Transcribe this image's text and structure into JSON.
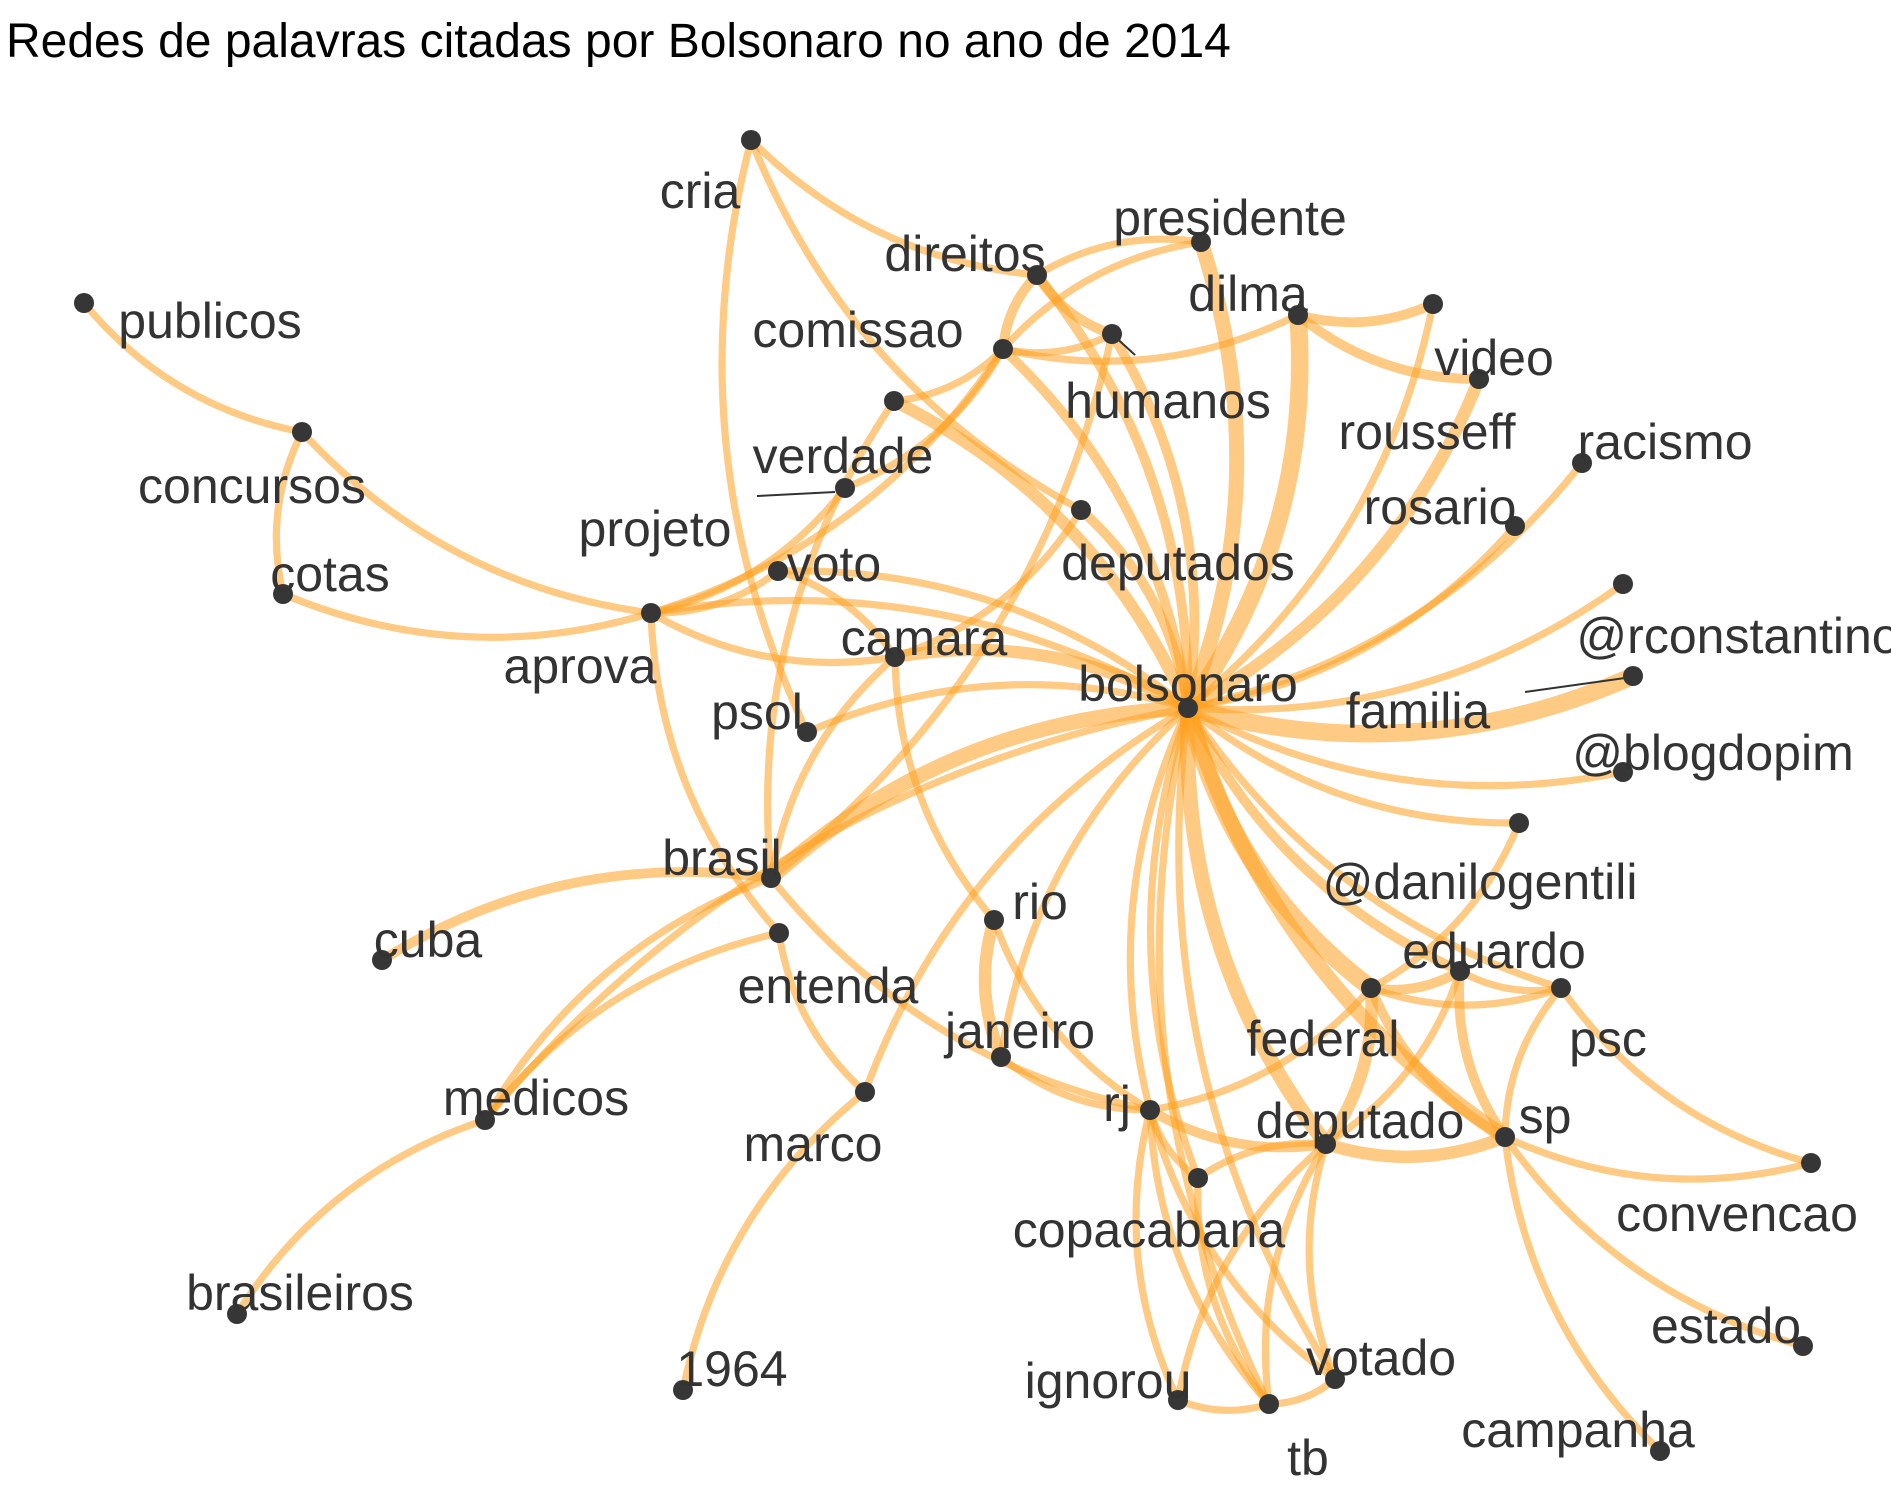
{
  "title": "Redes de palavras citadas por Bolsonaro no ano de 2014",
  "colors": {
    "edge": "#FFA11F",
    "node": "#363636",
    "label": "#333333",
    "background": "#ffffff"
  },
  "nodes": [
    {
      "id": "bolsonaro",
      "label": "bolsonaro"
    },
    {
      "id": "cria",
      "label": "cria"
    },
    {
      "id": "presidente",
      "label": "presidente"
    },
    {
      "id": "direitos",
      "label": "direitos"
    },
    {
      "id": "dilma",
      "label": "dilma"
    },
    {
      "id": "comissao",
      "label": "comissao"
    },
    {
      "id": "humanos",
      "label": "humanos"
    },
    {
      "id": "video",
      "label": "video"
    },
    {
      "id": "rousseff",
      "label": "rousseff"
    },
    {
      "id": "publicos",
      "label": "publicos"
    },
    {
      "id": "racismo",
      "label": "racismo"
    },
    {
      "id": "concursos",
      "label": "concursos"
    },
    {
      "id": "verdade",
      "label": "verdade"
    },
    {
      "id": "projeto",
      "label": "projeto"
    },
    {
      "id": "rosario",
      "label": "rosario"
    },
    {
      "id": "deputados",
      "label": "deputados"
    },
    {
      "id": "cotas",
      "label": "cotas"
    },
    {
      "id": "voto",
      "label": "voto"
    },
    {
      "id": "aprova",
      "label": "aprova"
    },
    {
      "id": "camara",
      "label": "camara"
    },
    {
      "id": "rconstantino",
      "label": "@rconstantino"
    },
    {
      "id": "familia",
      "label": "familia"
    },
    {
      "id": "psol",
      "label": "psol"
    },
    {
      "id": "blogdopim",
      "label": "@blogdopim"
    },
    {
      "id": "brasil",
      "label": "brasil"
    },
    {
      "id": "danilogentili",
      "label": "@danilogentili"
    },
    {
      "id": "rio",
      "label": "rio"
    },
    {
      "id": "cuba",
      "label": "cuba"
    },
    {
      "id": "entenda",
      "label": "entenda"
    },
    {
      "id": "eduardo",
      "label": "eduardo"
    },
    {
      "id": "janeiro",
      "label": "janeiro"
    },
    {
      "id": "federal",
      "label": "federal"
    },
    {
      "id": "psc",
      "label": "psc"
    },
    {
      "id": "medicos",
      "label": "medicos"
    },
    {
      "id": "rj",
      "label": "rj"
    },
    {
      "id": "deputado",
      "label": "deputado"
    },
    {
      "id": "sp",
      "label": "sp"
    },
    {
      "id": "marco",
      "label": "marco"
    },
    {
      "id": "convencao",
      "label": "convencao"
    },
    {
      "id": "copacabana",
      "label": "copacabana"
    },
    {
      "id": "brasileiros",
      "label": "brasileiros"
    },
    {
      "id": "estado",
      "label": "estado"
    },
    {
      "id": "1964",
      "label": "1964"
    },
    {
      "id": "votado",
      "label": "votado"
    },
    {
      "id": "ignorou",
      "label": "ignorou"
    },
    {
      "id": "tb",
      "label": "tb"
    },
    {
      "id": "campanha",
      "label": "campanha"
    }
  ],
  "edges": [
    {
      "source": "bolsonaro",
      "target": "dilma",
      "weight": 6
    },
    {
      "source": "bolsonaro",
      "target": "presidente",
      "weight": 5
    },
    {
      "source": "bolsonaro",
      "target": "rousseff",
      "weight": 4
    },
    {
      "source": "bolsonaro",
      "target": "familia",
      "weight": 6
    },
    {
      "source": "bolsonaro",
      "target": "federal",
      "weight": 6
    },
    {
      "source": "bolsonaro",
      "target": "deputado",
      "weight": 5
    },
    {
      "source": "bolsonaro",
      "target": "sp",
      "weight": 5
    },
    {
      "source": "bolsonaro",
      "target": "brasil",
      "weight": 5
    },
    {
      "source": "bolsonaro",
      "target": "camara",
      "weight": 4
    },
    {
      "source": "bolsonaro",
      "target": "verdade",
      "weight": 4
    },
    {
      "source": "bolsonaro",
      "target": "direitos",
      "weight": 3
    },
    {
      "source": "bolsonaro",
      "target": "comissao",
      "weight": 3
    },
    {
      "source": "bolsonaro",
      "target": "humanos",
      "weight": 3
    },
    {
      "source": "bolsonaro",
      "target": "deputados",
      "weight": 3
    },
    {
      "source": "bolsonaro",
      "target": "aprova",
      "weight": 2
    },
    {
      "source": "bolsonaro",
      "target": "voto",
      "weight": 2
    },
    {
      "source": "bolsonaro",
      "target": "rosario",
      "weight": 2
    },
    {
      "source": "bolsonaro",
      "target": "racismo",
      "weight": 2
    },
    {
      "source": "bolsonaro",
      "target": "rconstantino",
      "weight": 2
    },
    {
      "source": "bolsonaro",
      "target": "blogdopim",
      "weight": 2
    },
    {
      "source": "bolsonaro",
      "target": "danilogentili",
      "weight": 2
    },
    {
      "source": "bolsonaro",
      "target": "eduardo",
      "weight": 3
    },
    {
      "source": "bolsonaro",
      "target": "psc",
      "weight": 2
    },
    {
      "source": "bolsonaro",
      "target": "psol",
      "weight": 2
    },
    {
      "source": "bolsonaro",
      "target": "medicos",
      "weight": 2
    },
    {
      "source": "bolsonaro",
      "target": "marco",
      "weight": 2
    },
    {
      "source": "bolsonaro",
      "target": "janeiro",
      "weight": 2
    },
    {
      "source": "bolsonaro",
      "target": "rj",
      "weight": 2
    },
    {
      "source": "bolsonaro",
      "target": "copacabana",
      "weight": 2
    },
    {
      "source": "bolsonaro",
      "target": "tb",
      "weight": 2
    },
    {
      "source": "bolsonaro",
      "target": "votado",
      "weight": 2
    },
    {
      "source": "bolsonaro",
      "target": "video",
      "weight": 2
    },
    {
      "source": "dilma",
      "target": "video",
      "weight": 3
    },
    {
      "source": "dilma",
      "target": "rousseff",
      "weight": 3
    },
    {
      "source": "presidente",
      "target": "direitos",
      "weight": 2
    },
    {
      "source": "presidente",
      "target": "comissao",
      "weight": 2
    },
    {
      "source": "direitos",
      "target": "humanos",
      "weight": 3
    },
    {
      "source": "direitos",
      "target": "comissao",
      "weight": 3
    },
    {
      "source": "comissao",
      "target": "humanos",
      "weight": 2
    },
    {
      "source": "comissao",
      "target": "dilma",
      "weight": 2
    },
    {
      "source": "cria",
      "target": "direitos",
      "weight": 2
    },
    {
      "source": "cria",
      "target": "psol",
      "weight": 2
    },
    {
      "source": "cria",
      "target": "deputados",
      "weight": 2
    },
    {
      "source": "publicos",
      "target": "concursos",
      "weight": 2
    },
    {
      "source": "concursos",
      "target": "cotas",
      "weight": 2
    },
    {
      "source": "concursos",
      "target": "aprova",
      "weight": 2
    },
    {
      "source": "cotas",
      "target": "aprova",
      "weight": 2
    },
    {
      "source": "aprova",
      "target": "projeto",
      "weight": 2
    },
    {
      "source": "aprova",
      "target": "comissao",
      "weight": 2
    },
    {
      "source": "aprova",
      "target": "camara",
      "weight": 2
    },
    {
      "source": "aprova",
      "target": "entenda",
      "weight": 2
    },
    {
      "source": "aprova",
      "target": "voto",
      "weight": 2
    },
    {
      "source": "verdade",
      "target": "comissao",
      "weight": 2
    },
    {
      "source": "verdade",
      "target": "brasil",
      "weight": 2
    },
    {
      "source": "projeto",
      "target": "comissao",
      "weight": 2
    },
    {
      "source": "camara",
      "target": "voto",
      "weight": 2
    },
    {
      "source": "camara",
      "target": "deputados",
      "weight": 2
    },
    {
      "source": "camara",
      "target": "brasil",
      "weight": 2
    },
    {
      "source": "camara",
      "target": "rio",
      "weight": 2
    },
    {
      "source": "brasil",
      "target": "cuba",
      "weight": 3
    },
    {
      "source": "brasil",
      "target": "medicos",
      "weight": 2
    },
    {
      "source": "brasil",
      "target": "rj",
      "weight": 2
    },
    {
      "source": "brasil",
      "target": "humanos",
      "weight": 2
    },
    {
      "source": "entenda",
      "target": "medicos",
      "weight": 2
    },
    {
      "source": "entenda",
      "target": "marco",
      "weight": 2
    },
    {
      "source": "medicos",
      "target": "brasileiros",
      "weight": 2
    },
    {
      "source": "marco",
      "target": "1964",
      "weight": 2
    },
    {
      "source": "rio",
      "target": "janeiro",
      "weight": 4
    },
    {
      "source": "rio",
      "target": "rj",
      "weight": 2
    },
    {
      "source": "janeiro",
      "target": "rj",
      "weight": 2
    },
    {
      "source": "rj",
      "target": "deputado",
      "weight": 3
    },
    {
      "source": "rj",
      "target": "copacabana",
      "weight": 2
    },
    {
      "source": "rj",
      "target": "ignorou",
      "weight": 2
    },
    {
      "source": "rj",
      "target": "tb",
      "weight": 2
    },
    {
      "source": "rj",
      "target": "votado",
      "weight": 2
    },
    {
      "source": "rj",
      "target": "federal",
      "weight": 2
    },
    {
      "source": "deputado",
      "target": "federal",
      "weight": 4
    },
    {
      "source": "deputado",
      "target": "sp",
      "weight": 4
    },
    {
      "source": "deputado",
      "target": "eduardo",
      "weight": 2
    },
    {
      "source": "deputado",
      "target": "copacabana",
      "weight": 2
    },
    {
      "source": "deputado",
      "target": "tb",
      "weight": 2
    },
    {
      "source": "deputado",
      "target": "votado",
      "weight": 2
    },
    {
      "source": "deputado",
      "target": "ignorou",
      "weight": 2
    },
    {
      "source": "federal",
      "target": "sp",
      "weight": 3
    },
    {
      "source": "federal",
      "target": "eduardo",
      "weight": 3
    },
    {
      "source": "federal",
      "target": "psc",
      "weight": 2
    },
    {
      "source": "federal",
      "target": "danilogentili",
      "weight": 2
    },
    {
      "source": "eduardo",
      "target": "sp",
      "weight": 3
    },
    {
      "source": "eduardo",
      "target": "psc",
      "weight": 2
    },
    {
      "source": "psc",
      "target": "sp",
      "weight": 2
    },
    {
      "source": "psc",
      "target": "convencao",
      "weight": 2
    },
    {
      "source": "sp",
      "target": "convencao",
      "weight": 2
    },
    {
      "source": "sp",
      "target": "estado",
      "weight": 2
    },
    {
      "source": "sp",
      "target": "campanha",
      "weight": 2
    },
    {
      "source": "ignorou",
      "target": "tb",
      "weight": 2
    },
    {
      "source": "tb",
      "target": "votado",
      "weight": 2
    },
    {
      "source": "copacabana",
      "target": "tb",
      "weight": 2
    }
  ]
}
